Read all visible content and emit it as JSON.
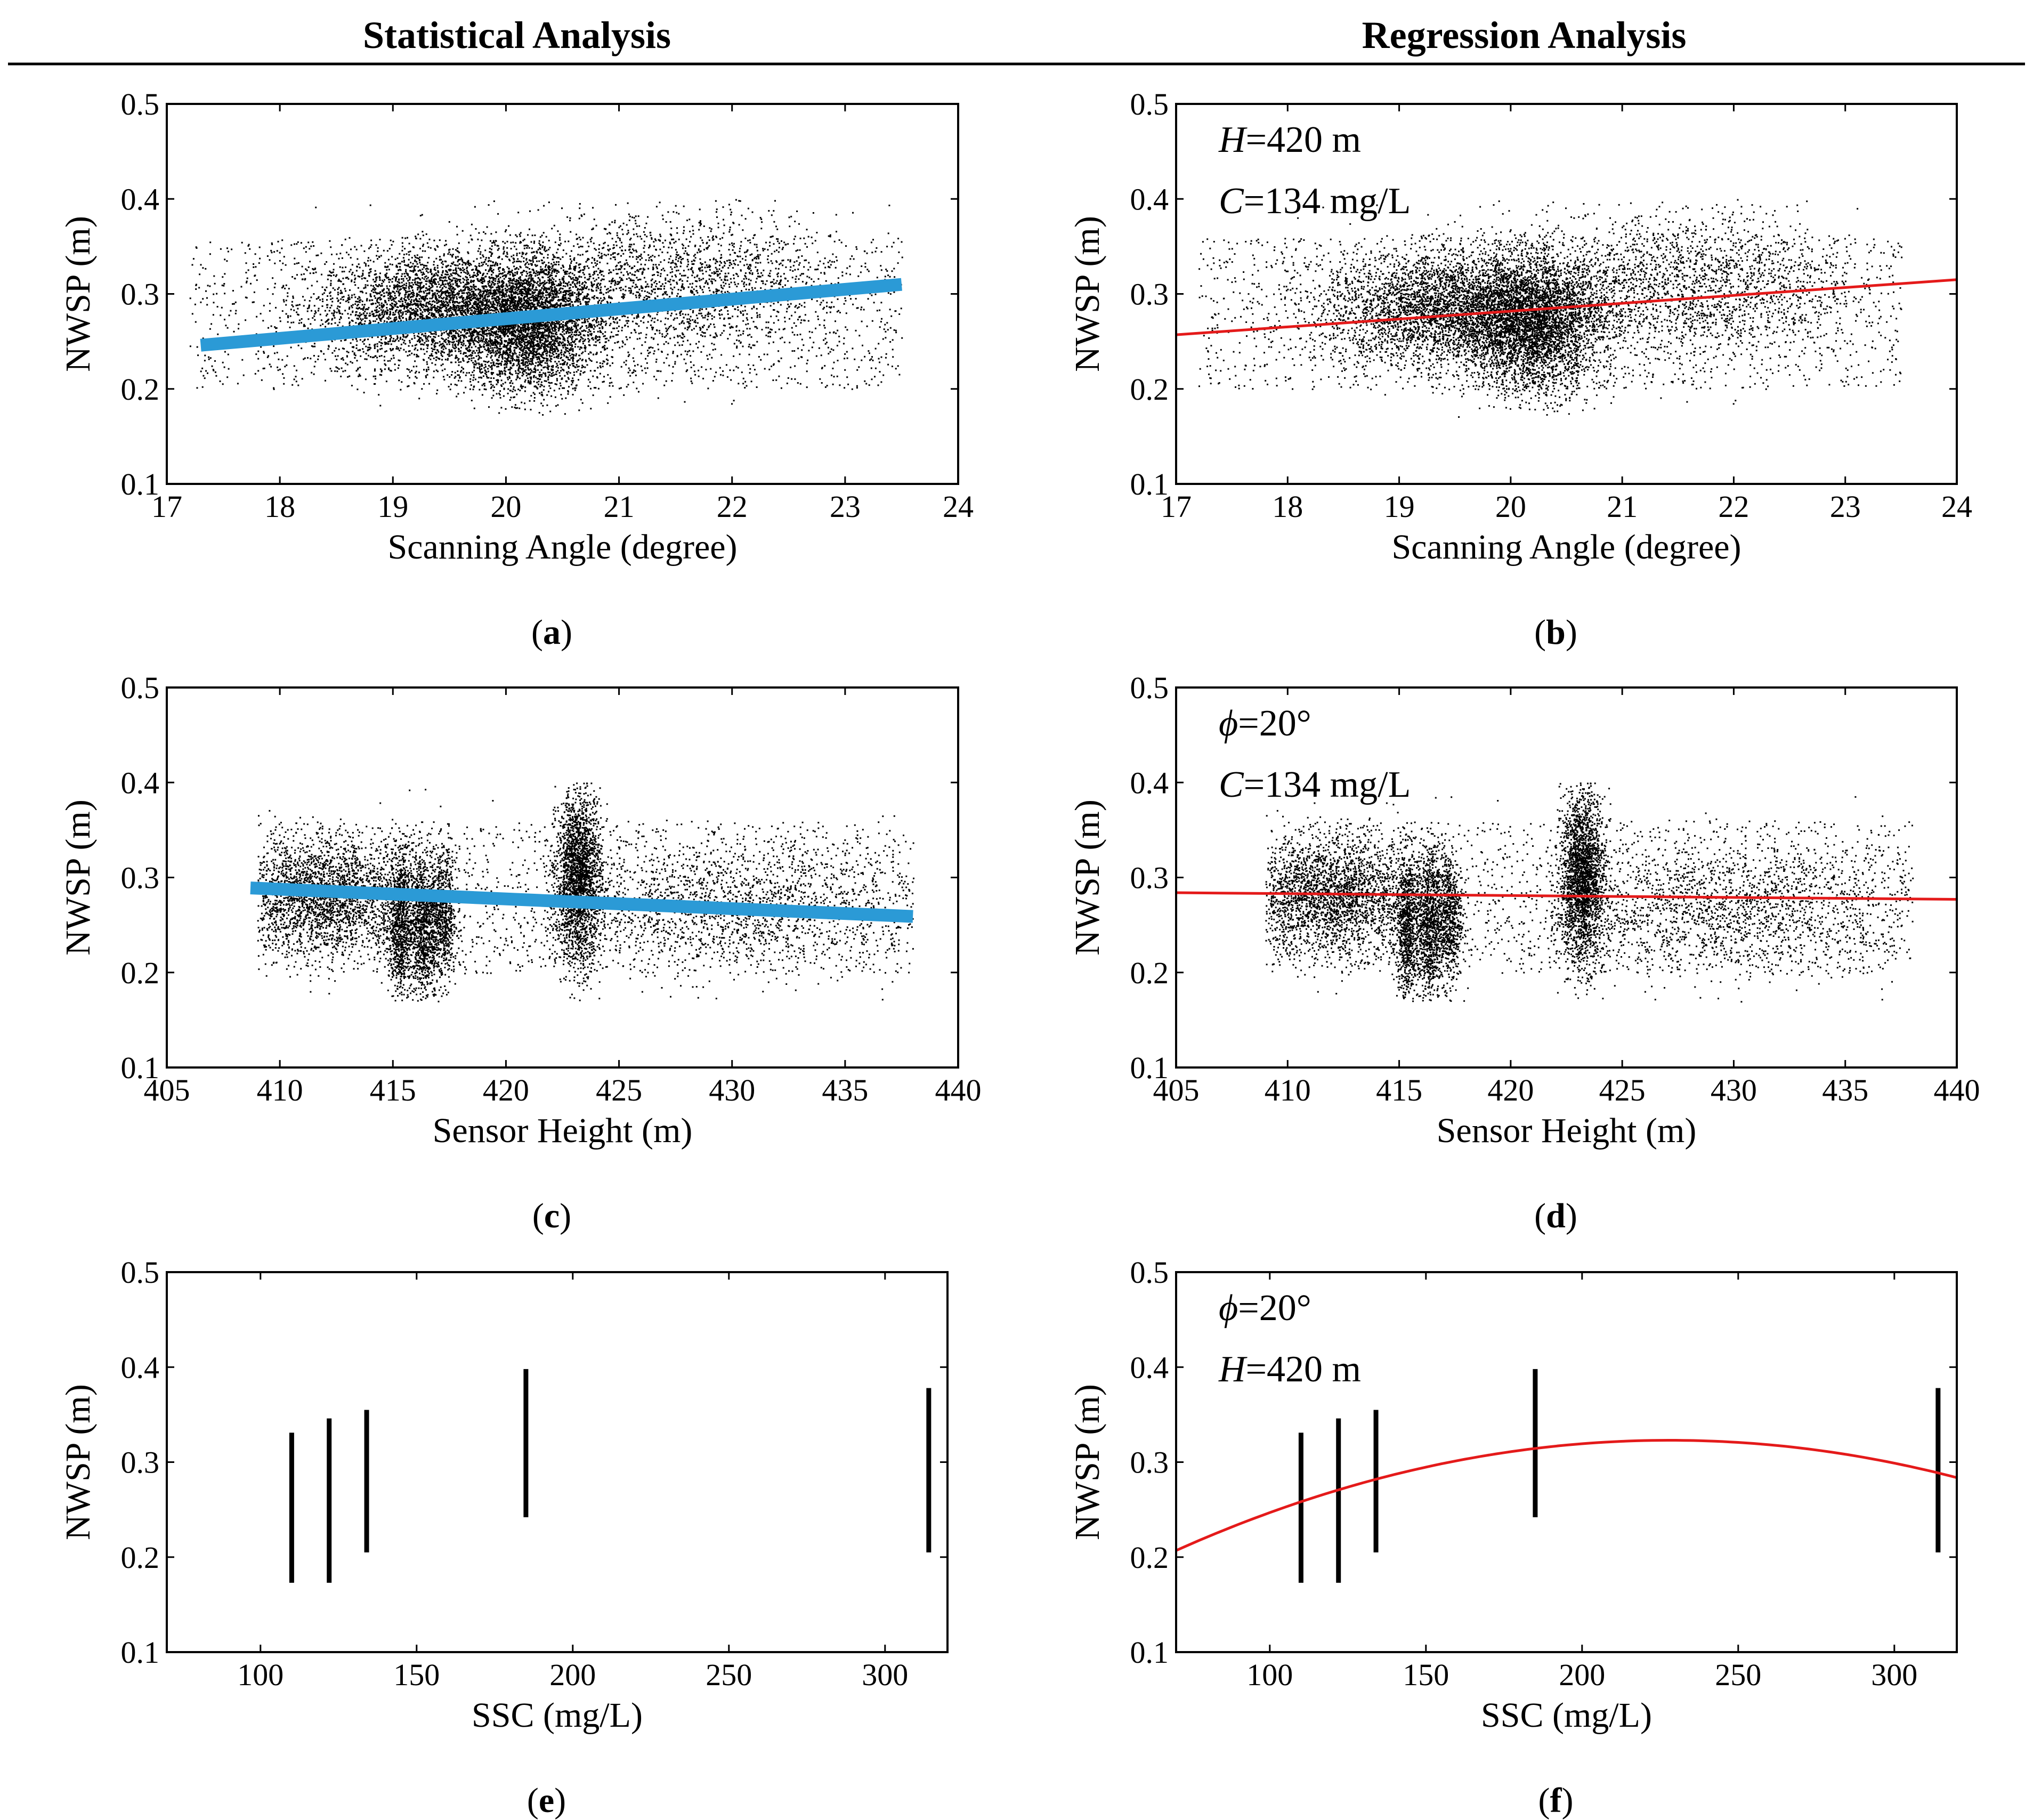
{
  "headers": {
    "left": "Statistical Analysis",
    "right": "Regression Analysis"
  },
  "colors": {
    "points": "#000000",
    "trend_blue": "#2b9ad6",
    "fit_red": "#e41a1a",
    "axes": "#000000"
  },
  "chart_data": [
    {
      "id": "a",
      "label": "a",
      "type": "scatter",
      "title": "",
      "xlabel": "Scanning Angle (degree)",
      "ylabel": "NWSP (m)",
      "xlim": [
        17,
        24
      ],
      "ylim": [
        0.1,
        0.5
      ],
      "xticks": [
        17,
        18,
        19,
        20,
        21,
        22,
        23,
        24
      ],
      "yticks": [
        0.1,
        0.2,
        0.3,
        0.4,
        0.5
      ],
      "scatter": {
        "kind": "angle",
        "n": 9000,
        "x_range": [
          17.2,
          23.5
        ],
        "y_range": [
          0.17,
          0.4
        ],
        "clusters": [
          {
            "x": 19.5,
            "y": 0.285,
            "sx": 0.6,
            "sy": 0.03,
            "n": 4000
          },
          {
            "x": 20.2,
            "y": 0.265,
            "sx": 0.3,
            "sy": 0.035,
            "n": 3000
          },
          {
            "x": 21.5,
            "y": 0.31,
            "sx": 0.8,
            "sy": 0.04,
            "n": 2000
          }
        ]
      },
      "lines": [
        {
          "name": "trend",
          "style": "thick-blue",
          "x": [
            17.3,
            23.5
          ],
          "y": [
            0.246,
            0.31
          ]
        }
      ],
      "annotations": []
    },
    {
      "id": "b",
      "label": "b",
      "type": "scatter",
      "title": "",
      "xlabel": "Scanning Angle (degree)",
      "ylabel": "NWSP (m)",
      "xlim": [
        17,
        24
      ],
      "ylim": [
        0.1,
        0.5
      ],
      "xticks": [
        17,
        18,
        19,
        20,
        21,
        22,
        23,
        24
      ],
      "yticks": [
        0.1,
        0.2,
        0.3,
        0.4,
        0.5
      ],
      "scatter": {
        "kind": "angle",
        "n": 9000,
        "x_range": [
          17.2,
          23.5
        ],
        "y_range": [
          0.17,
          0.4
        ],
        "clusters": [
          {
            "x": 19.5,
            "y": 0.285,
            "sx": 0.6,
            "sy": 0.03,
            "n": 4000
          },
          {
            "x": 20.2,
            "y": 0.265,
            "sx": 0.3,
            "sy": 0.035,
            "n": 3000
          },
          {
            "x": 21.5,
            "y": 0.31,
            "sx": 0.8,
            "sy": 0.04,
            "n": 2000
          }
        ]
      },
      "lines": [
        {
          "name": "regression",
          "style": "thin-red",
          "x": [
            17,
            24
          ],
          "y": [
            0.257,
            0.315
          ]
        }
      ],
      "annotations": [
        {
          "italic": "H",
          "text": "=420 m"
        },
        {
          "italic": "C",
          "text": "=134 mg/L"
        }
      ]
    },
    {
      "id": "c",
      "label": "c",
      "type": "scatter",
      "title": "",
      "xlabel": "Sensor Height (m)",
      "ylabel": "NWSP (m)",
      "xlim": [
        405,
        440
      ],
      "ylim": [
        0.1,
        0.5
      ],
      "xticks": [
        405,
        410,
        415,
        420,
        425,
        430,
        435,
        440
      ],
      "yticks": [
        0.1,
        0.2,
        0.3,
        0.4,
        0.5
      ],
      "scatter": {
        "kind": "height",
        "n": 8000,
        "x_range": [
          409,
          438
        ],
        "y_range": [
          0.17,
          0.4
        ],
        "clusters": [
          {
            "x": 412,
            "y": 0.28,
            "sx": 2.0,
            "sy": 0.03,
            "n": 2500
          },
          {
            "x": 415.3,
            "y": 0.25,
            "sx": 0.25,
            "sy": 0.04,
            "n": 800
          },
          {
            "x": 416.3,
            "y": 0.25,
            "sx": 0.3,
            "sy": 0.04,
            "n": 900
          },
          {
            "x": 417.2,
            "y": 0.26,
            "sx": 0.3,
            "sy": 0.035,
            "n": 700
          },
          {
            "x": 423.2,
            "y": 0.3,
            "sx": 0.5,
            "sy": 0.045,
            "n": 2200
          },
          {
            "x": 430,
            "y": 0.27,
            "sx": 4.5,
            "sy": 0.035,
            "n": 1800
          }
        ]
      },
      "lines": [
        {
          "name": "trend",
          "style": "thick-blue",
          "x": [
            408.7,
            438
          ],
          "y": [
            0.289,
            0.259
          ]
        }
      ],
      "annotations": []
    },
    {
      "id": "d",
      "label": "d",
      "type": "scatter",
      "title": "",
      "xlabel": "Sensor Height (m)",
      "ylabel": "NWSP (m)",
      "xlim": [
        405,
        440
      ],
      "ylim": [
        0.1,
        0.5
      ],
      "xticks": [
        405,
        410,
        415,
        420,
        425,
        430,
        435,
        440
      ],
      "yticks": [
        0.1,
        0.2,
        0.3,
        0.4,
        0.5
      ],
      "scatter": {
        "kind": "height",
        "n": 8000,
        "x_range": [
          409,
          438
        ],
        "y_range": [
          0.17,
          0.4
        ],
        "clusters": [
          {
            "x": 412,
            "y": 0.28,
            "sx": 2.0,
            "sy": 0.03,
            "n": 2500
          },
          {
            "x": 415.3,
            "y": 0.25,
            "sx": 0.25,
            "sy": 0.04,
            "n": 800
          },
          {
            "x": 416.3,
            "y": 0.25,
            "sx": 0.3,
            "sy": 0.04,
            "n": 900
          },
          {
            "x": 417.2,
            "y": 0.26,
            "sx": 0.3,
            "sy": 0.035,
            "n": 700
          },
          {
            "x": 423.2,
            "y": 0.3,
            "sx": 0.5,
            "sy": 0.045,
            "n": 2200
          },
          {
            "x": 430,
            "y": 0.27,
            "sx": 4.5,
            "sy": 0.035,
            "n": 1800
          }
        ]
      },
      "lines": [
        {
          "name": "regression",
          "style": "thin-red",
          "x": [
            405,
            440
          ],
          "y": [
            0.284,
            0.277
          ]
        }
      ],
      "annotations": [
        {
          "italic": "ϕ",
          "text": "=20°"
        },
        {
          "italic": "C",
          "text": "=134 mg/L"
        }
      ]
    },
    {
      "id": "e",
      "label": "e",
      "type": "scatter",
      "title": "",
      "xlabel": "SSC (mg/L)",
      "ylabel": "NWSP (m)",
      "xlim": [
        70,
        320
      ],
      "ylim": [
        0.1,
        0.5
      ],
      "xticks": [
        100,
        150,
        200,
        250,
        300
      ],
      "yticks": [
        0.1,
        0.2,
        0.3,
        0.4,
        0.5
      ],
      "bars": [
        {
          "x": 110,
          "ymin": 0.173,
          "ymax": 0.331
        },
        {
          "x": 122,
          "ymin": 0.173,
          "ymax": 0.346
        },
        {
          "x": 134,
          "ymin": 0.205,
          "ymax": 0.355
        },
        {
          "x": 185,
          "ymin": 0.242,
          "ymax": 0.398
        },
        {
          "x": 314,
          "ymin": 0.205,
          "ymax": 0.378
        }
      ],
      "lines": [],
      "annotations": []
    },
    {
      "id": "f",
      "label": "f",
      "type": "scatter",
      "title": "",
      "xlabel": "SSC (mg/L)",
      "ylabel": "NWSP (m)",
      "xlim": [
        70,
        320
      ],
      "ylim": [
        0.1,
        0.5
      ],
      "xticks": [
        100,
        150,
        200,
        250,
        300
      ],
      "yticks": [
        0.1,
        0.2,
        0.3,
        0.4,
        0.5
      ],
      "bars": [
        {
          "x": 110,
          "ymin": 0.173,
          "ymax": 0.331
        },
        {
          "x": 122,
          "ymin": 0.173,
          "ymax": 0.346
        },
        {
          "x": 134,
          "ymin": 0.205,
          "ymax": 0.355
        },
        {
          "x": 185,
          "ymin": 0.242,
          "ymax": 0.398
        },
        {
          "x": 314,
          "ymin": 0.205,
          "ymax": 0.378
        }
      ],
      "lines": [
        {
          "name": "regression",
          "style": "thin-red",
          "curve": "quadratic",
          "x": [
            70,
            228,
            320
          ],
          "y": [
            0.207,
            0.323,
            0.283
          ]
        }
      ],
      "annotations": [
        {
          "italic": "ϕ",
          "text": "=20°"
        },
        {
          "italic": "H",
          "text": "=420 m"
        }
      ]
    }
  ]
}
